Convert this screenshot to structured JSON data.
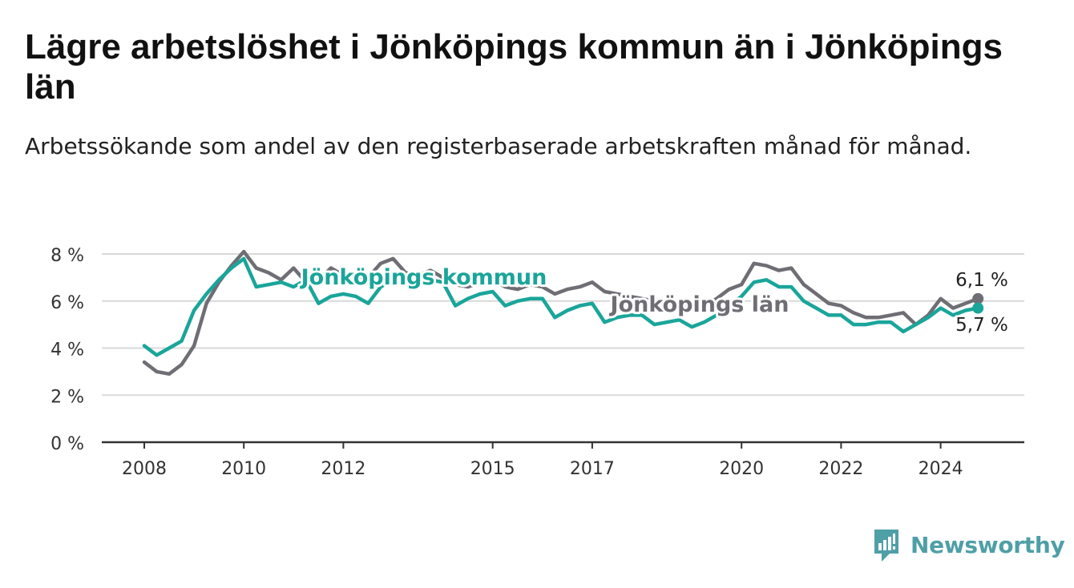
{
  "title": "Lägre arbetslöshet i Jönköpings kommun än i Jönköpings län",
  "subtitle": "Arbetssökande som andel av den registerbaserade arbetskraften månad för månad.",
  "brand": {
    "name": "Newsworthy"
  },
  "chart_data": {
    "type": "line",
    "title": "Lägre arbetslöshet i Jönköpings kommun än i Jönköpings län",
    "subtitle": "Arbetssökande som andel av den registerbaserade arbetskraften månad för månad.",
    "ylim": [
      0,
      8
    ],
    "y_ticks": [
      0,
      2,
      4,
      6,
      8
    ],
    "y_tick_labels": [
      "0 %",
      "2 %",
      "4 %",
      "6 %",
      "8 %"
    ],
    "x_ticks": [
      2008,
      2010,
      2012,
      2015,
      2017,
      2020,
      2022,
      2024
    ],
    "x_tick_labels": [
      "2008",
      "2010",
      "2012",
      "2015",
      "2017",
      "2020",
      "2022",
      "2024"
    ],
    "grid": true,
    "legend": "inline labels",
    "colors": {
      "kommun": "#1aa59a",
      "lan": "#6e6e74",
      "grid": "#d9d9d9",
      "axis": "#333333"
    },
    "series": [
      {
        "name": "Jönköpings län",
        "color": "#6e6e74",
        "label_value": "6,1 %",
        "x": [
          2008.0,
          2008.25,
          2008.5,
          2008.75,
          2009.0,
          2009.25,
          2009.5,
          2009.75,
          2010.0,
          2010.25,
          2010.5,
          2010.75,
          2011.0,
          2011.25,
          2011.5,
          2011.75,
          2012.0,
          2012.25,
          2012.5,
          2012.75,
          2013.0,
          2013.25,
          2013.5,
          2013.75,
          2014.0,
          2014.25,
          2014.5,
          2014.75,
          2015.0,
          2015.25,
          2015.5,
          2015.75,
          2016.0,
          2016.25,
          2016.5,
          2016.75,
          2017.0,
          2017.25,
          2017.5,
          2017.75,
          2018.0,
          2018.25,
          2018.5,
          2018.75,
          2019.0,
          2019.25,
          2019.5,
          2019.75,
          2020.0,
          2020.25,
          2020.5,
          2020.75,
          2021.0,
          2021.25,
          2021.5,
          2021.75,
          2022.0,
          2022.25,
          2022.5,
          2022.75,
          2023.0,
          2023.25,
          2023.5,
          2023.75,
          2024.0,
          2024.25,
          2024.5,
          2024.75
        ],
        "values": [
          3.4,
          3.0,
          2.9,
          3.3,
          4.1,
          5.9,
          6.8,
          7.5,
          8.1,
          7.4,
          7.2,
          6.9,
          7.4,
          6.8,
          6.9,
          7.4,
          7.1,
          6.9,
          7.0,
          7.6,
          7.8,
          7.2,
          7.1,
          7.3,
          7.0,
          6.7,
          6.6,
          6.8,
          6.9,
          6.6,
          6.5,
          6.7,
          6.6,
          6.3,
          6.5,
          6.6,
          6.8,
          6.4,
          6.3,
          6.2,
          6.1,
          6.0,
          5.9,
          5.8,
          5.7,
          5.8,
          6.1,
          6.5,
          6.7,
          7.6,
          7.5,
          7.3,
          7.4,
          6.7,
          6.3,
          5.9,
          5.8,
          5.5,
          5.3,
          5.3,
          5.4,
          5.5,
          5.0,
          5.4,
          6.1,
          5.7,
          5.9,
          6.1
        ]
      },
      {
        "name": "Jönköpings kommun",
        "color": "#1aa59a",
        "label_value": "5,7 %",
        "x": [
          2008.0,
          2008.25,
          2008.5,
          2008.75,
          2009.0,
          2009.25,
          2009.5,
          2009.75,
          2010.0,
          2010.25,
          2010.5,
          2010.75,
          2011.0,
          2011.25,
          2011.5,
          2011.75,
          2012.0,
          2012.25,
          2012.5,
          2012.75,
          2013.0,
          2013.25,
          2013.5,
          2013.75,
          2014.0,
          2014.25,
          2014.5,
          2014.75,
          2015.0,
          2015.25,
          2015.5,
          2015.75,
          2016.0,
          2016.25,
          2016.5,
          2016.75,
          2017.0,
          2017.25,
          2017.5,
          2017.75,
          2018.0,
          2018.25,
          2018.5,
          2018.75,
          2019.0,
          2019.25,
          2019.5,
          2019.75,
          2020.0,
          2020.25,
          2020.5,
          2020.75,
          2021.0,
          2021.25,
          2021.5,
          2021.75,
          2022.0,
          2022.25,
          2022.5,
          2022.75,
          2023.0,
          2023.25,
          2023.5,
          2023.75,
          2024.0,
          2024.25,
          2024.5,
          2024.75
        ],
        "values": [
          4.1,
          3.7,
          4.0,
          4.3,
          5.6,
          6.3,
          6.9,
          7.4,
          7.8,
          6.6,
          6.7,
          6.8,
          6.6,
          6.9,
          5.9,
          6.2,
          6.3,
          6.2,
          5.9,
          6.6,
          6.9,
          7.1,
          6.8,
          6.9,
          6.8,
          5.8,
          6.1,
          6.3,
          6.4,
          5.8,
          6.0,
          6.1,
          6.1,
          5.3,
          5.6,
          5.8,
          5.9,
          5.1,
          5.3,
          5.4,
          5.4,
          5.0,
          5.1,
          5.2,
          4.9,
          5.1,
          5.4,
          5.8,
          6.2,
          6.8,
          6.9,
          6.6,
          6.6,
          6.0,
          5.7,
          5.4,
          5.4,
          5.0,
          5.0,
          5.1,
          5.1,
          4.7,
          5.0,
          5.3,
          5.7,
          5.4,
          5.6,
          5.7
        ]
      }
    ]
  }
}
